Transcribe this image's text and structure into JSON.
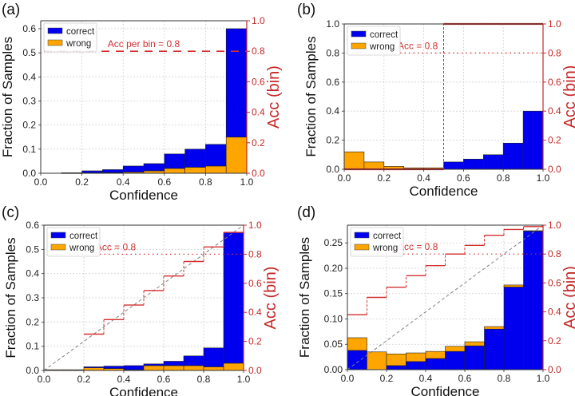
{
  "colors": {
    "correct": "#0000ee",
    "wrong": "#ffa500",
    "acc": "#d32f2f",
    "accAxis": "#c62828",
    "diag": "#808080",
    "grid": "#d0d0d0",
    "frame": "#333333"
  },
  "chart_data": [
    {
      "panel_label": "(a)",
      "type": "bar",
      "stacked": true,
      "title": "",
      "xlabel": "Confidence",
      "ylabel": "Fraction of Samples",
      "y2label": "Acc (bin)",
      "xlim": [
        0,
        1
      ],
      "ylim": [
        0,
        0.633
      ],
      "y2lim": [
        0,
        1
      ],
      "xticks": [
        "0.0",
        "0.2",
        "0.4",
        "0.6",
        "0.8",
        "1.0"
      ],
      "yticks": [
        "0.0",
        "0.1",
        "0.2",
        "0.3",
        "0.4",
        "0.5",
        "0.6"
      ],
      "yticks_values": [
        0,
        0.1,
        0.2,
        0.3,
        0.4,
        0.5,
        0.6
      ],
      "y2ticks": [
        "0.0",
        "0.2",
        "0.4",
        "0.6",
        "0.8",
        "1.0"
      ],
      "grid": true,
      "legend": {
        "placement": "top-left",
        "entries": [
          "correct",
          "wrong"
        ]
      },
      "bins": [
        0.0,
        0.1,
        0.2,
        0.3,
        0.4,
        0.5,
        0.6,
        0.7,
        0.8,
        0.9
      ],
      "series": [
        {
          "name": "wrong",
          "values": [
            0,
            0.0005,
            0.002,
            0.003,
            0.005,
            0.01,
            0.02,
            0.025,
            0.03,
            0.15
          ]
        },
        {
          "name": "correct",
          "values": [
            0,
            0.0015,
            0.008,
            0.012,
            0.025,
            0.03,
            0.06,
            0.075,
            0.09,
            0.45
          ]
        }
      ],
      "stack_order": [
        "wrong",
        "correct"
      ],
      "acc_reference": {
        "value": 0.8,
        "style": "dashed",
        "label": "Acc per bin = 0.8"
      },
      "acc_steps": null,
      "diagonal": false
    },
    {
      "panel_label": "(b)",
      "type": "bar",
      "stacked": true,
      "title": "",
      "xlabel": "Confidence",
      "ylabel": "Fraction of Samples",
      "y2label": "Acc (bin)",
      "xlim": [
        0,
        1
      ],
      "ylim": [
        0,
        1.0
      ],
      "y2lim": [
        0,
        1
      ],
      "xticks": [
        "0.0",
        "0.2",
        "0.4",
        "0.6",
        "0.8",
        "1.0"
      ],
      "yticks": [
        "0.0",
        "0.2",
        "0.4",
        "0.6",
        "0.8",
        "1.0"
      ],
      "yticks_values": [
        0,
        0.2,
        0.4,
        0.6,
        0.8,
        1.0
      ],
      "y2ticks": [
        "0.0",
        "0.2",
        "0.4",
        "0.6",
        "0.8",
        "1.0"
      ],
      "grid": true,
      "legend": {
        "placement": "top-left",
        "entries": [
          "correct",
          "wrong"
        ]
      },
      "bins": [
        0.0,
        0.1,
        0.2,
        0.3,
        0.4,
        0.5,
        0.6,
        0.7,
        0.8,
        0.9
      ],
      "series": [
        {
          "name": "wrong",
          "values": [
            0.12,
            0.05,
            0.02,
            0.01,
            0.01,
            0,
            0,
            0,
            0,
            0
          ]
        },
        {
          "name": "correct",
          "values": [
            0,
            0,
            0,
            0,
            0,
            0.05,
            0.07,
            0.1,
            0.18,
            0.4
          ]
        }
      ],
      "stack_order": [
        "wrong",
        "correct"
      ],
      "acc_reference": {
        "value": 0.8,
        "style": "dotted",
        "label": "Acc = 0.8"
      },
      "acc_steps": [
        0,
        0,
        0,
        0,
        0,
        1,
        1,
        1,
        1,
        1
      ],
      "diagonal": false
    },
    {
      "panel_label": "(c)",
      "type": "bar",
      "stacked": true,
      "title": "",
      "xlabel": "Confidence",
      "ylabel": "Fraction of Samples",
      "y2label": "Acc (bin)",
      "xlim": [
        0,
        1
      ],
      "ylim": [
        0,
        0.6
      ],
      "y2lim": [
        0,
        1
      ],
      "xticks": [
        "0.0",
        "0.2",
        "0.4",
        "0.6",
        "0.8",
        "1.0"
      ],
      "yticks": [
        "0.0",
        "0.1",
        "0.2",
        "0.3",
        "0.4",
        "0.5",
        "0.6"
      ],
      "yticks_values": [
        0,
        0.1,
        0.2,
        0.3,
        0.4,
        0.5,
        0.6
      ],
      "y2ticks": [
        "0.0",
        "0.2",
        "0.4",
        "0.6",
        "0.8",
        "1.0"
      ],
      "grid": true,
      "legend": {
        "placement": "top-left",
        "entries": [
          "correct",
          "wrong"
        ]
      },
      "bins": [
        0.0,
        0.1,
        0.2,
        0.3,
        0.4,
        0.5,
        0.6,
        0.7,
        0.8,
        0.9
      ],
      "series": [
        {
          "name": "wrong",
          "values": [
            0.003,
            0.003,
            0.011,
            0.008,
            0.003,
            0.02,
            0.02,
            0.02,
            0.015,
            0.03
          ]
        },
        {
          "name": "correct",
          "values": [
            0,
            0,
            0.004,
            0.01,
            0.017,
            0.007,
            0.018,
            0.04,
            0.078,
            0.54
          ]
        }
      ],
      "stack_order": [
        "wrong",
        "correct"
      ],
      "acc_reference": {
        "value": 0.8,
        "style": "dotted",
        "label": "Acc = 0.8"
      },
      "acc_steps": [
        null,
        null,
        0.25,
        0.35,
        0.45,
        0.55,
        0.65,
        0.75,
        0.85,
        0.95
      ],
      "diagonal": true
    },
    {
      "panel_label": "(d)",
      "type": "bar",
      "stacked": true,
      "title": "",
      "xlabel": "Confidence",
      "ylabel": "Fraction of Samples",
      "y2label": "Acc (bin)",
      "xlim": [
        0,
        1
      ],
      "ylim": [
        0,
        0.285
      ],
      "y2lim": [
        0,
        1
      ],
      "xticks": [
        "0.0",
        "0.2",
        "0.4",
        "0.6",
        "0.8",
        "1.0"
      ],
      "yticks": [
        "0.00",
        "0.05",
        "0.10",
        "0.15",
        "0.20",
        "0.25"
      ],
      "yticks_values": [
        0,
        0.05,
        0.1,
        0.15,
        0.2,
        0.25
      ],
      "y2ticks": [
        "0.0",
        "0.2",
        "0.4",
        "0.6",
        "0.8",
        "1.0"
      ],
      "grid": true,
      "legend": {
        "placement": "top-left",
        "entries": [
          "correct",
          "wrong"
        ]
      },
      "bins": [
        0.0,
        0.1,
        0.2,
        0.3,
        0.4,
        0.5,
        0.6,
        0.7,
        0.8,
        0.9
      ],
      "series": [
        {
          "name": "wrong",
          "values": [
            0.025,
            0.035,
            0.023,
            0.017,
            0.014,
            0.01,
            0.008,
            0.005,
            0.004,
            0.001
          ]
        },
        {
          "name": "correct",
          "values": [
            0.038,
            0.0,
            0.008,
            0.016,
            0.022,
            0.036,
            0.047,
            0.08,
            0.163,
            0.273
          ]
        }
      ],
      "stack_order": [
        "correct",
        "wrong"
      ],
      "acc_reference": {
        "value": 0.8,
        "style": "dotted",
        "label": "Acc = 0.8"
      },
      "acc_steps": [
        0.38,
        0.5,
        0.57,
        0.65,
        0.72,
        0.8,
        0.86,
        0.93,
        0.97,
        0.99
      ],
      "diagonal": true
    }
  ]
}
